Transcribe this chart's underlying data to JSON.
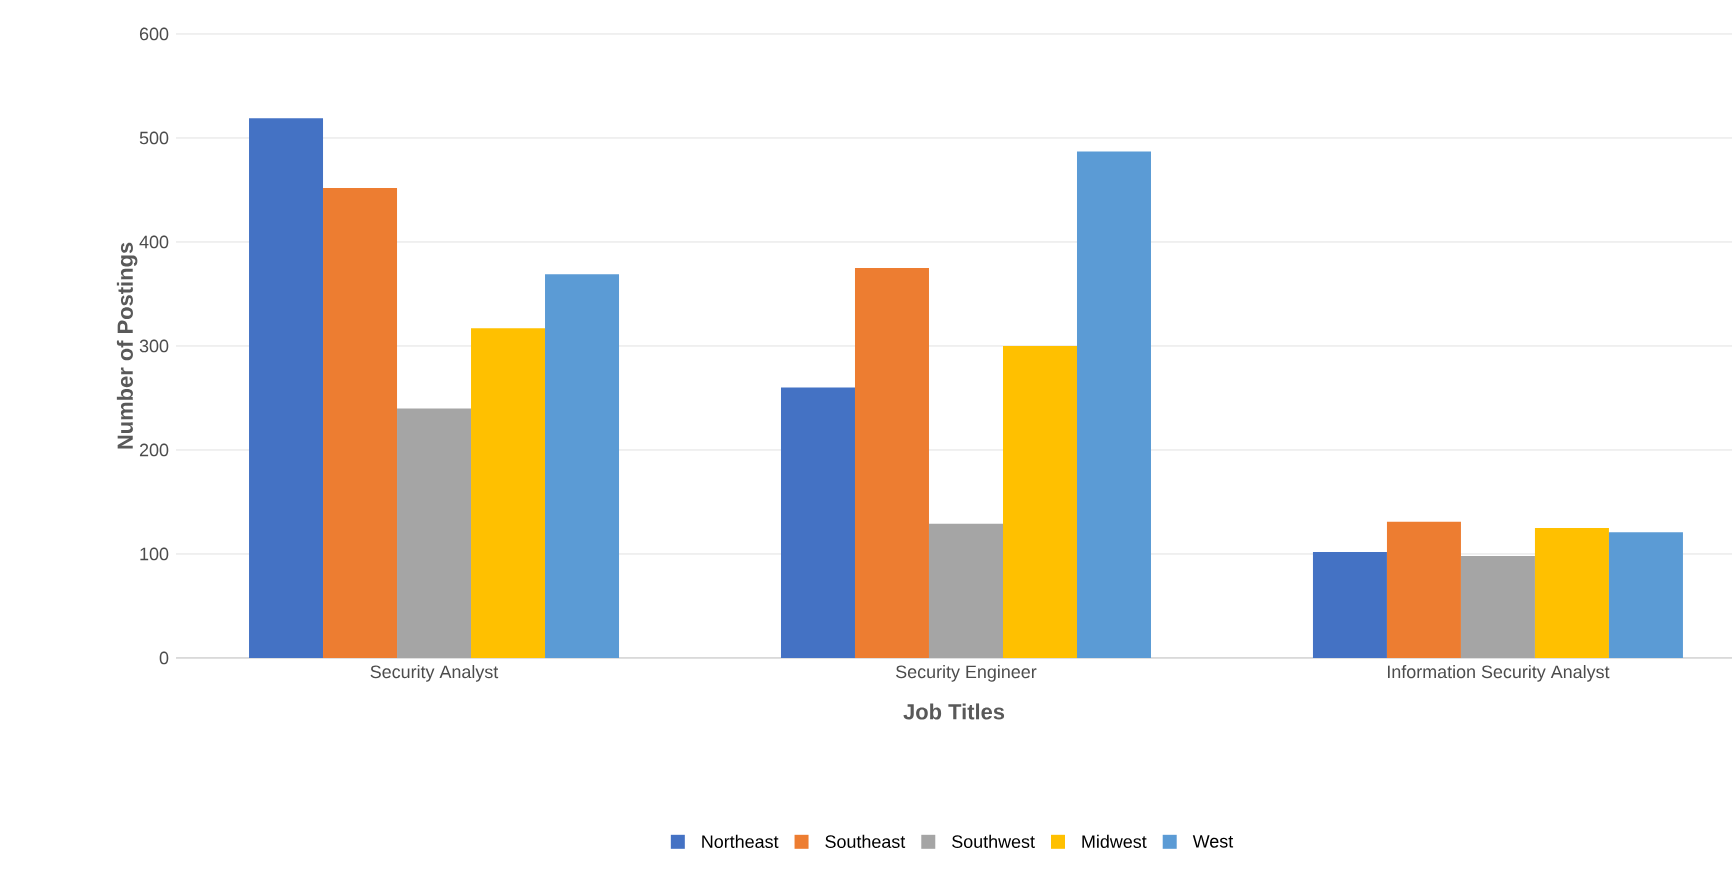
{
  "chart_data": {
    "type": "bar",
    "xlabel": "Job Titles",
    "ylabel": "Number of Postings",
    "categories": [
      "Security Analyst",
      "Security Engineer",
      "Information Security Analyst"
    ],
    "series": [
      {
        "name": "Northeast",
        "color": "#4472c4",
        "values": [
          519,
          260,
          102
        ]
      },
      {
        "name": "Southeast",
        "color": "#ed7d31",
        "values": [
          452,
          375,
          131
        ]
      },
      {
        "name": "Southwest",
        "color": "#a5a5a5",
        "values": [
          240,
          129,
          98
        ]
      },
      {
        "name": "Midwest",
        "color": "#ffc000",
        "values": [
          317,
          300,
          125
        ]
      },
      {
        "name": "West",
        "color": "#5b9bd5",
        "values": [
          369,
          487,
          121
        ]
      }
    ],
    "ylim": [
      0,
      600
    ],
    "yticks": [
      0,
      100,
      200,
      300,
      400,
      500,
      600
    ],
    "grid": "y",
    "legend": "bottom"
  }
}
